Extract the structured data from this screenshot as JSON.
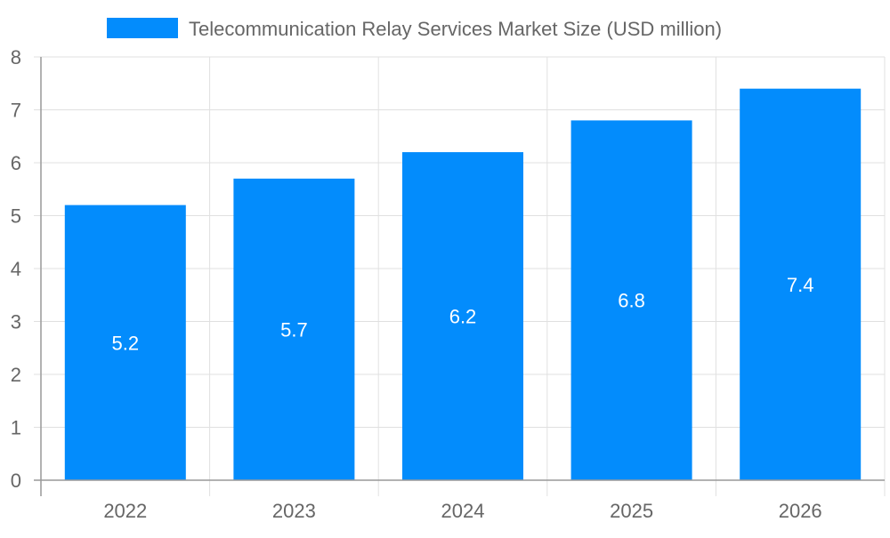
{
  "chart_data": {
    "type": "bar",
    "title": "",
    "xlabel": "",
    "ylabel": "",
    "categories": [
      "2022",
      "2023",
      "2024",
      "2025",
      "2026"
    ],
    "series": [
      {
        "name": "Telecommunication Relay Services Market Size (USD million)",
        "values": [
          5.2,
          5.7,
          6.2,
          6.8,
          7.4
        ]
      }
    ],
    "data_labels": [
      "5.2",
      "5.7",
      "6.2",
      "6.8",
      "7.4"
    ],
    "ylim": [
      0,
      8
    ],
    "yticks": [
      "0",
      "1",
      "2",
      "3",
      "4",
      "5",
      "6",
      "7",
      "8"
    ],
    "grid": true,
    "legend_position": "top",
    "colors": {
      "bar": "#038cfc",
      "grid": "#e0e0e0",
      "axis": "#999999",
      "text": "#666666",
      "label": "#ffffff"
    }
  }
}
